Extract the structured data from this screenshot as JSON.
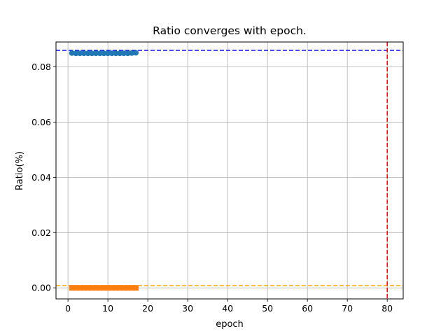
{
  "chart_data": {
    "type": "scatter",
    "title": "Ratio converges with epoch.",
    "xlabel": "epoch",
    "ylabel": "Ratio(%)",
    "xlim": [
      -3,
      84
    ],
    "ylim": [
      -0.004,
      0.089
    ],
    "xticks": [
      0,
      10,
      20,
      30,
      40,
      50,
      60,
      70,
      80
    ],
    "yticks": [
      0.0,
      0.02,
      0.04,
      0.06,
      0.08
    ],
    "ytick_labels": [
      "0.00",
      "0.02",
      "0.04",
      "0.06",
      "0.08"
    ],
    "grid": true,
    "series": [
      {
        "marker": "circle",
        "color": "#1f77b4",
        "x": [
          1,
          2,
          3,
          4,
          5,
          6,
          7,
          8,
          9,
          10,
          11,
          12,
          13,
          14,
          15,
          16,
          17
        ],
        "y": [
          0.085,
          0.0849,
          0.0849,
          0.0849,
          0.0849,
          0.0849,
          0.0849,
          0.0849,
          0.0849,
          0.0849,
          0.0849,
          0.0849,
          0.0849,
          0.0849,
          0.0849,
          0.085,
          0.0851
        ]
      },
      {
        "marker": "square",
        "color": "#ff7f0e",
        "x": [
          1,
          2,
          3,
          4,
          5,
          6,
          7,
          8,
          9,
          10,
          11,
          12,
          13,
          14,
          15,
          16,
          17
        ],
        "y": [
          0,
          0,
          0,
          0,
          0,
          0,
          0,
          0,
          0,
          0,
          0,
          0,
          0,
          0,
          0,
          0,
          0
        ]
      }
    ],
    "hlines": [
      {
        "y": 0.086,
        "color": "#0000ff",
        "style": "dashed"
      },
      {
        "y": 0.0008,
        "color": "#ffa500",
        "style": "dashed"
      }
    ],
    "vlines": [
      {
        "x": 80,
        "color": "#ff0000",
        "style": "dashed"
      }
    ]
  }
}
